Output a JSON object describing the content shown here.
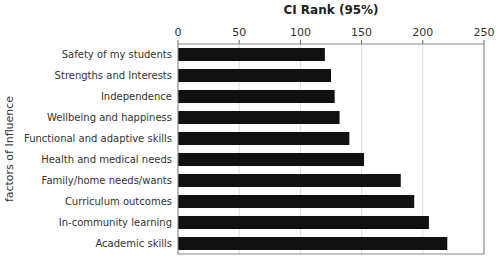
{
  "chart_data": {
    "type": "bar",
    "orientation": "horizontal",
    "title": "CI Rank (95%)",
    "ylabel": "factors of Influence",
    "categories": [
      "Academic skills",
      "In-community learning",
      "Curriculum outcomes",
      "Family/home needs/wants",
      "Health and medical needs",
      "Functional and adaptive skills",
      "Wellbeing and happiness",
      "Independence",
      "Strengths and Interests",
      "Safety of my students"
    ],
    "values": [
      220,
      205,
      193,
      182,
      152,
      140,
      132,
      128,
      125,
      120
    ],
    "color": "#111111",
    "xlim": [
      0,
      250
    ],
    "xticks": [
      0,
      50,
      100,
      150,
      200,
      250
    ],
    "grid": true
  }
}
